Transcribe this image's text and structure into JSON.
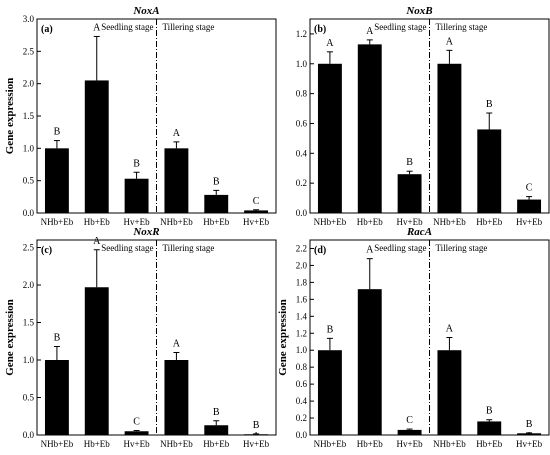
{
  "figure": {
    "shared_ylabel": "Gene expression",
    "stage_labels": [
      "Seedling stage",
      "Tillering stage"
    ]
  },
  "chart_data": [
    {
      "type": "bar",
      "panel": "(a)",
      "title": "NoxA",
      "ylabel": "Gene expression",
      "ylim": [
        0,
        3.0
      ],
      "yticks": [
        0.0,
        0.5,
        1.0,
        1.5,
        2.0,
        2.5,
        3.0
      ],
      "categories": [
        "NHb+Eb",
        "Hb+Eb",
        "Hv+Eb",
        "NHb+Eb",
        "Hb+Eb",
        "Hv+Eb"
      ],
      "values": [
        1.0,
        2.05,
        0.53,
        1.0,
        0.28,
        0.04
      ],
      "errors": [
        0.12,
        0.68,
        0.1,
        0.1,
        0.07,
        0.01
      ],
      "letters": [
        "B",
        "A",
        "B",
        "A",
        "B",
        "C"
      ],
      "groups": [
        "Seedling stage",
        "Tillering stage"
      ],
      "grid": false
    },
    {
      "type": "bar",
      "panel": "(b)",
      "title": "NoxB",
      "ylabel": "",
      "ylim": [
        0,
        1.3
      ],
      "yticks": [
        0.0,
        0.2,
        0.4,
        0.6,
        0.8,
        1.0,
        1.2
      ],
      "categories": [
        "NHb+Eb",
        "Hb+Eb",
        "Hv+Eb",
        "NHb+Eb",
        "Hb+Eb",
        "Hv+Eb"
      ],
      "values": [
        1.0,
        1.13,
        0.26,
        1.0,
        0.56,
        0.09
      ],
      "errors": [
        0.08,
        0.03,
        0.02,
        0.09,
        0.11,
        0.02
      ],
      "letters": [
        "A",
        "A",
        "B",
        "A",
        "B",
        "C"
      ],
      "groups": [
        "Seedling stage",
        "Tillering stage"
      ],
      "grid": false
    },
    {
      "type": "bar",
      "panel": "(c)",
      "title": "NoxR",
      "ylabel": "Gene expression",
      "ylim": [
        0,
        2.6
      ],
      "yticks": [
        0.0,
        0.5,
        1.0,
        1.5,
        2.0,
        2.5
      ],
      "categories": [
        "NHb+Eb",
        "Hb+Eb",
        "Hv+Eb",
        "NHb+Eb",
        "Hb+Eb",
        "Hv+Eb"
      ],
      "values": [
        1.0,
        1.97,
        0.05,
        1.0,
        0.13,
        0.01
      ],
      "errors": [
        0.18,
        0.5,
        0.01,
        0.1,
        0.06,
        0.005
      ],
      "letters": [
        "B",
        "A",
        "C",
        "A",
        "B",
        "B"
      ],
      "groups": [
        "Seedling stage",
        "Tillering stage"
      ],
      "grid": false
    },
    {
      "type": "bar",
      "panel": "(d)",
      "title": "RacA",
      "ylabel": "Gene expression",
      "ylim": [
        0,
        2.3
      ],
      "yticks": [
        0.0,
        0.2,
        0.4,
        0.6,
        0.8,
        1.0,
        1.2,
        1.4,
        1.6,
        1.8,
        2.0,
        2.2
      ],
      "categories": [
        "NHb+Eb",
        "Hb+Eb",
        "Hv+Eb",
        "NHb+Eb",
        "Hb+Eb",
        "Hv+Eb"
      ],
      "values": [
        1.0,
        1.72,
        0.06,
        1.0,
        0.16,
        0.02
      ],
      "errors": [
        0.14,
        0.36,
        0.01,
        0.15,
        0.02,
        0.005
      ],
      "letters": [
        "B",
        "A",
        "C",
        "A",
        "B",
        "B"
      ],
      "groups": [
        "Seedling stage",
        "Tillering stage"
      ],
      "grid": false
    }
  ]
}
